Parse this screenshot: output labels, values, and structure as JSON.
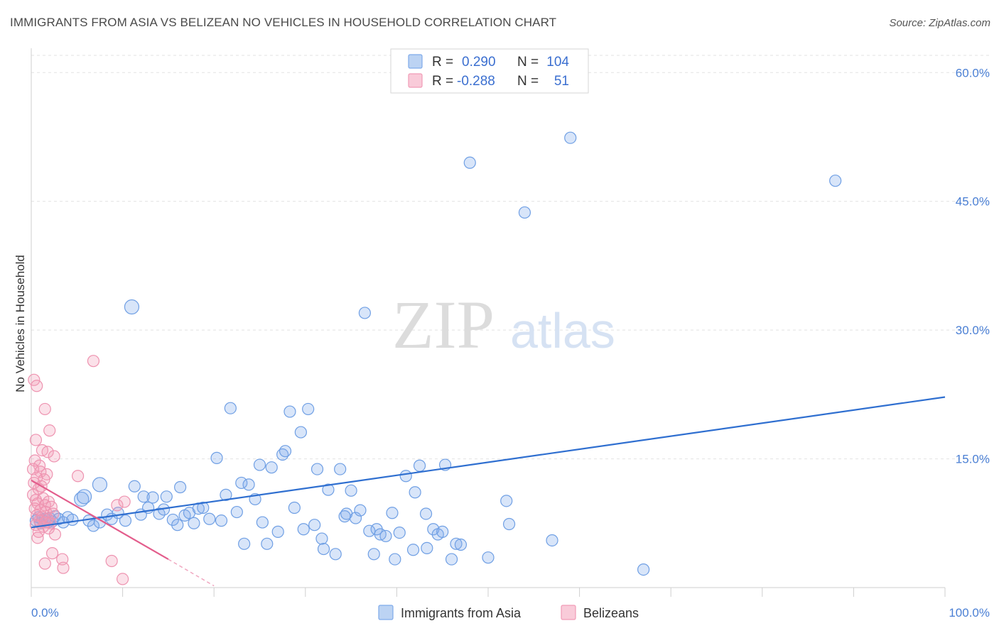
{
  "header": {
    "title": "IMMIGRANTS FROM ASIA VS BELIZEAN NO VEHICLES IN HOUSEHOLD CORRELATION CHART",
    "source": "Source: ZipAtlas.com"
  },
  "watermark": {
    "zip": "ZIP",
    "atlas": "atlas"
  },
  "legend_top": {
    "rows": [
      {
        "r_label": "R =",
        "r_value": "0.290",
        "n_label": "N =",
        "n_value": "104",
        "color": "#7eaaea"
      },
      {
        "r_label": "R =",
        "r_value": "-0.288",
        "n_label": "N =",
        "n_value": "51",
        "color": "#f19bb6"
      }
    ]
  },
  "legend_bottom": {
    "items": [
      {
        "label": "Immigrants from Asia",
        "color": "#7eaaea"
      },
      {
        "label": "Belizeans",
        "color": "#f19bb6"
      }
    ]
  },
  "chart_data": {
    "type": "scatter",
    "title": "IMMIGRANTS FROM ASIA VS BELIZEAN NO VEHICLES IN HOUSEHOLD CORRELATION CHART",
    "xlabel": "",
    "ylabel": "No Vehicles in Household",
    "xlim": [
      0,
      100
    ],
    "ylim": [
      0,
      63
    ],
    "x_tick_labels": [
      "0.0%",
      "100.0%"
    ],
    "y_tick_labels": [
      "15.0%",
      "30.0%",
      "45.0%",
      "60.0%"
    ],
    "y_ticks": [
      15,
      30,
      45,
      60
    ],
    "grid": true,
    "legend_position": "top-center",
    "series": [
      {
        "name": "Immigrants from Asia",
        "color": "#7eaaea",
        "trend": {
          "x": [
            0,
            100
          ],
          "y": [
            7.0,
            22.2
          ]
        },
        "points": [
          [
            0.5,
            7.8
          ],
          [
            0.8,
            8.2
          ],
          [
            1.0,
            7.5
          ],
          [
            1.2,
            7.9
          ],
          [
            1.5,
            8.0
          ],
          [
            1.8,
            7.6
          ],
          [
            2.0,
            8.1
          ],
          [
            2.3,
            7.7
          ],
          [
            2.6,
            8.3
          ],
          [
            3.0,
            8.0
          ],
          [
            3.5,
            7.6
          ],
          [
            4.0,
            8.2
          ],
          [
            4.5,
            7.9
          ],
          [
            5.5,
            10.3
          ],
          [
            5.8,
            10.6
          ],
          [
            6.3,
            7.8
          ],
          [
            6.8,
            7.2
          ],
          [
            7.5,
            7.6
          ],
          [
            7.5,
            12.0
          ],
          [
            8.3,
            8.5
          ],
          [
            8.8,
            8.0
          ],
          [
            9.5,
            8.7
          ],
          [
            10.3,
            7.8
          ],
          [
            11.0,
            32.7
          ],
          [
            11.3,
            11.8
          ],
          [
            12.0,
            8.5
          ],
          [
            12.3,
            10.6
          ],
          [
            12.8,
            9.3
          ],
          [
            13.3,
            10.5
          ],
          [
            14.0,
            8.6
          ],
          [
            14.5,
            9.1
          ],
          [
            14.8,
            10.6
          ],
          [
            15.5,
            7.9
          ],
          [
            16.0,
            7.3
          ],
          [
            16.3,
            11.7
          ],
          [
            16.8,
            8.4
          ],
          [
            17.3,
            8.7
          ],
          [
            17.8,
            7.5
          ],
          [
            18.3,
            9.2
          ],
          [
            18.8,
            9.3
          ],
          [
            19.5,
            8.0
          ],
          [
            20.3,
            15.1
          ],
          [
            20.8,
            7.8
          ],
          [
            21.3,
            10.8
          ],
          [
            21.8,
            20.9
          ],
          [
            22.5,
            8.8
          ],
          [
            23.0,
            12.2
          ],
          [
            23.3,
            5.1
          ],
          [
            23.8,
            12.0
          ],
          [
            24.5,
            10.3
          ],
          [
            25.0,
            14.3
          ],
          [
            25.3,
            7.6
          ],
          [
            25.8,
            5.1
          ],
          [
            26.3,
            14.0
          ],
          [
            27.0,
            6.5
          ],
          [
            27.5,
            15.5
          ],
          [
            27.8,
            15.9
          ],
          [
            28.3,
            20.5
          ],
          [
            28.8,
            9.3
          ],
          [
            29.5,
            18.1
          ],
          [
            29.8,
            6.8
          ],
          [
            30.3,
            20.8
          ],
          [
            31.0,
            7.3
          ],
          [
            31.3,
            13.8
          ],
          [
            31.8,
            5.7
          ],
          [
            32.0,
            4.5
          ],
          [
            32.5,
            11.4
          ],
          [
            33.3,
            3.9
          ],
          [
            33.8,
            13.8
          ],
          [
            34.3,
            8.3
          ],
          [
            34.5,
            8.6
          ],
          [
            35.0,
            11.3
          ],
          [
            35.5,
            8.1
          ],
          [
            36.0,
            9.0
          ],
          [
            36.5,
            32.0
          ],
          [
            37.0,
            6.6
          ],
          [
            37.5,
            3.9
          ],
          [
            37.8,
            6.8
          ],
          [
            38.2,
            6.2
          ],
          [
            38.8,
            6.0
          ],
          [
            39.5,
            8.7
          ],
          [
            39.8,
            3.3
          ],
          [
            40.3,
            6.4
          ],
          [
            41.0,
            13.0
          ],
          [
            41.8,
            4.4
          ],
          [
            42.0,
            11.1
          ],
          [
            42.5,
            14.2
          ],
          [
            43.2,
            8.6
          ],
          [
            43.3,
            4.6
          ],
          [
            44.0,
            6.8
          ],
          [
            44.5,
            6.2
          ],
          [
            45.0,
            6.5
          ],
          [
            45.3,
            14.3
          ],
          [
            46.0,
            3.3
          ],
          [
            46.5,
            5.1
          ],
          [
            47.0,
            5.0
          ],
          [
            48.0,
            49.5
          ],
          [
            50.0,
            3.5
          ],
          [
            52.0,
            10.1
          ],
          [
            52.3,
            7.4
          ],
          [
            54.0,
            43.7
          ],
          [
            57.0,
            5.5
          ],
          [
            59.0,
            52.4
          ],
          [
            67.0,
            2.1
          ],
          [
            88.0,
            47.4
          ]
        ]
      },
      {
        "name": "Belizeans",
        "color": "#f19bb6",
        "trend": {
          "x": [
            0,
            15
          ],
          "y": [
            12.5,
            3.3
          ]
        },
        "trend_extension": {
          "x": [
            15,
            20
          ],
          "y": [
            3.3,
            0.2
          ]
        },
        "points": [
          [
            0.3,
            24.2
          ],
          [
            0.6,
            23.5
          ],
          [
            1.5,
            20.8
          ],
          [
            2.0,
            18.3
          ],
          [
            0.5,
            17.2
          ],
          [
            1.2,
            16.0
          ],
          [
            1.8,
            15.8
          ],
          [
            2.5,
            15.3
          ],
          [
            0.4,
            14.8
          ],
          [
            0.9,
            14.2
          ],
          [
            0.2,
            13.8
          ],
          [
            1.0,
            13.5
          ],
          [
            1.7,
            13.2
          ],
          [
            0.6,
            12.8
          ],
          [
            1.4,
            12.6
          ],
          [
            0.3,
            12.2
          ],
          [
            1.1,
            11.8
          ],
          [
            0.8,
            11.5
          ],
          [
            0.2,
            10.8
          ],
          [
            1.3,
            10.4
          ],
          [
            0.5,
            10.2
          ],
          [
            1.9,
            10.0
          ],
          [
            0.7,
            9.8
          ],
          [
            1.5,
            9.6
          ],
          [
            2.2,
            9.4
          ],
          [
            0.4,
            9.2
          ],
          [
            1.0,
            9.0
          ],
          [
            1.6,
            8.8
          ],
          [
            2.4,
            8.6
          ],
          [
            0.6,
            8.4
          ],
          [
            1.2,
            8.2
          ],
          [
            1.8,
            8.0
          ],
          [
            0.9,
            7.8
          ],
          [
            1.5,
            7.6
          ],
          [
            2.1,
            7.5
          ],
          [
            0.5,
            7.3
          ],
          [
            1.3,
            7.1
          ],
          [
            1.9,
            6.9
          ],
          [
            0.8,
            6.5
          ],
          [
            2.6,
            6.2
          ],
          [
            0.7,
            5.8
          ],
          [
            2.3,
            4.0
          ],
          [
            3.4,
            3.3
          ],
          [
            1.5,
            2.8
          ],
          [
            3.5,
            2.3
          ],
          [
            8.8,
            3.1
          ],
          [
            10.0,
            1.0
          ],
          [
            6.8,
            26.4
          ],
          [
            5.1,
            13.0
          ],
          [
            9.4,
            9.6
          ],
          [
            10.2,
            10.0
          ]
        ]
      }
    ]
  }
}
